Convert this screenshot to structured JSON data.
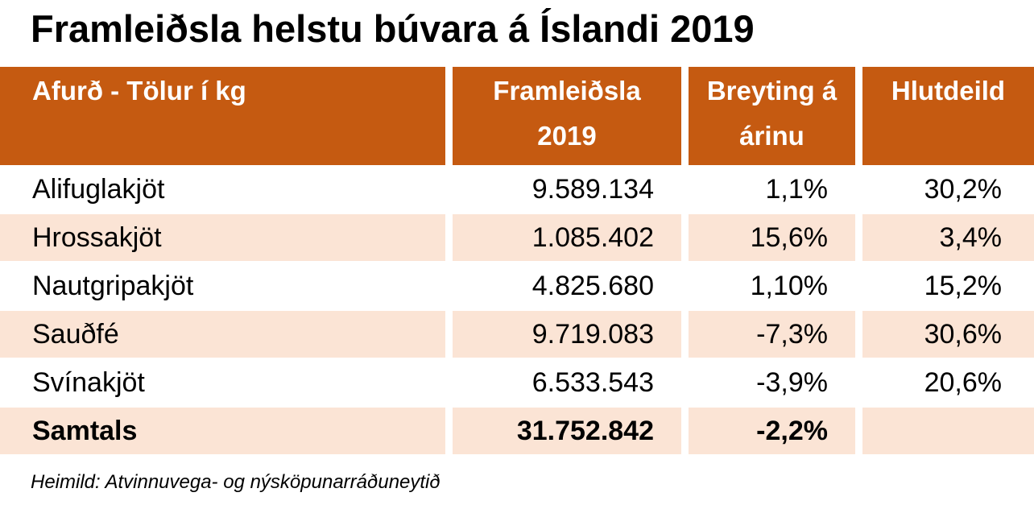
{
  "title": "Framleiðsla helstu búvara á Íslandi 2019",
  "headers": [
    "Afurð - Tölur í kg",
    "Framleiðsla 2019",
    "Breyting á árinu",
    "Hlutdeild"
  ],
  "rows": [
    {
      "product": "Alifuglakjöt",
      "production": "9.589.134",
      "change": "1,1%",
      "share": "30,2%"
    },
    {
      "product": "Hrossakjöt",
      "production": "1.085.402",
      "change": "15,6%",
      "share": "3,4%"
    },
    {
      "product": "Nautgripakjöt",
      "production": "4.825.680",
      "change": "1,10%",
      "share": "15,2%"
    },
    {
      "product": "Sauðfé",
      "production": "9.719.083",
      "change": "-7,3%",
      "share": "30,6%"
    },
    {
      "product": "Svínakjöt",
      "production": "6.533.543",
      "change": "-3,9%",
      "share": "20,6%"
    }
  ],
  "total": {
    "label": "Samtals",
    "production": "31.752.842",
    "change": "-2,2%",
    "share": ""
  },
  "source": "Heimild: Atvinnuvega- og nýsköpunarráðuneytið",
  "colors": {
    "header": "#C55A11",
    "band": "#FBE4D5"
  }
}
